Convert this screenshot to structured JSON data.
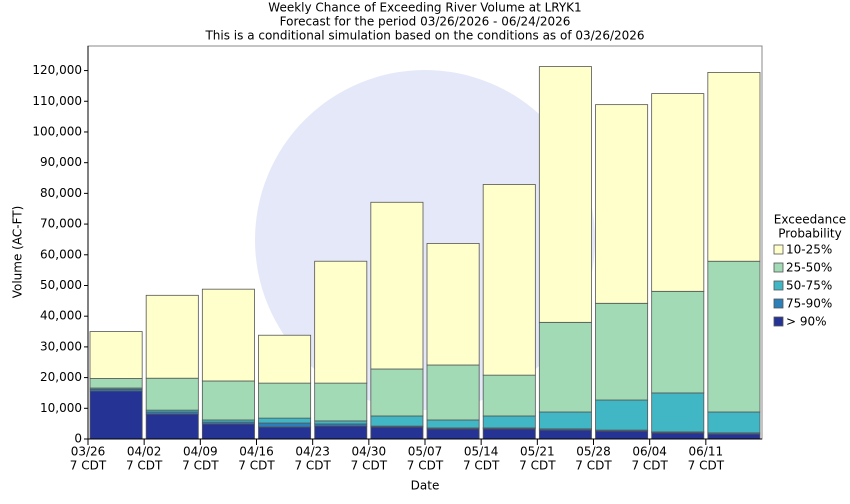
{
  "chart_data": {
    "type": "stacked_bar",
    "title": [
      "Weekly Chance of Exceeding River Volume at LRYK1",
      "Forecast for the period 03/26/2026 - 06/24/2026",
      "This is a conditional simulation based on the conditions as of 03/26/2026"
    ],
    "x_label": "Date",
    "y_label": "Volume (AC-FT)",
    "categories": [
      "03/26",
      "04/02",
      "04/09",
      "04/16",
      "04/23",
      "04/30",
      "05/07",
      "05/14",
      "05/21",
      "05/28",
      "06/04",
      "06/11"
    ],
    "category_sublabels": [
      "7 CDT",
      "7 CDT",
      "7 CDT",
      "7 CDT",
      "7 CDT",
      "7 CDT",
      "7 CDT",
      "7 CDT",
      "7 CDT",
      "7 CDT",
      "7 CDT",
      "7 CDT"
    ],
    "legend_title": [
      "Exceedance",
      "Probability"
    ],
    "legend_position": "right",
    "series": [
      {
        "name": "> 90%",
        "color": "#253494",
        "values": [
          15600,
          8100,
          4900,
          3900,
          4200,
          3900,
          3300,
          3300,
          2900,
          2600,
          2000,
          1600
        ]
      },
      {
        "name": "75-90%",
        "color": "#2c7fb8",
        "values": [
          600,
          700,
          600,
          1300,
          700,
          300,
          300,
          300,
          400,
          300,
          300,
          400
        ]
      },
      {
        "name": "50-75%",
        "color": "#41b6c4",
        "values": [
          400,
          600,
          700,
          1600,
          1000,
          3300,
          2600,
          3900,
          5500,
          9800,
          12700,
          6800
        ]
      },
      {
        "name": "25-50%",
        "color": "#a1dab4",
        "values": [
          3100,
          10400,
          12700,
          11400,
          12300,
          15300,
          17900,
          13300,
          29200,
          31500,
          33100,
          49100
        ]
      },
      {
        "name": "10-25%",
        "color": "#ffffcc",
        "values": [
          15300,
          27000,
          29900,
          15600,
          39700,
          54300,
          39600,
          62100,
          83300,
          64700,
          64400,
          61500
        ]
      }
    ],
    "ylim": [
      0,
      128000
    ],
    "yticks": [
      0,
      {
        "value": 10000,
        "label": "10,000"
      },
      {
        "value": 20000,
        "label": "20,000"
      },
      {
        "value": 30000,
        "label": "30,000"
      },
      {
        "value": 40000,
        "label": "40,000"
      },
      {
        "value": 50000,
        "label": "50,000"
      },
      {
        "value": 60000,
        "label": "60,000"
      },
      {
        "value": 70000,
        "label": "70,000"
      },
      {
        "value": 80000,
        "label": "80,000"
      },
      {
        "value": 90000,
        "label": "90,000"
      },
      {
        "value": 100000,
        "label": "100,000"
      },
      {
        "value": 110000,
        "label": "110,000"
      },
      {
        "value": 120000,
        "label": "120,000"
      }
    ],
    "grid": false
  }
}
